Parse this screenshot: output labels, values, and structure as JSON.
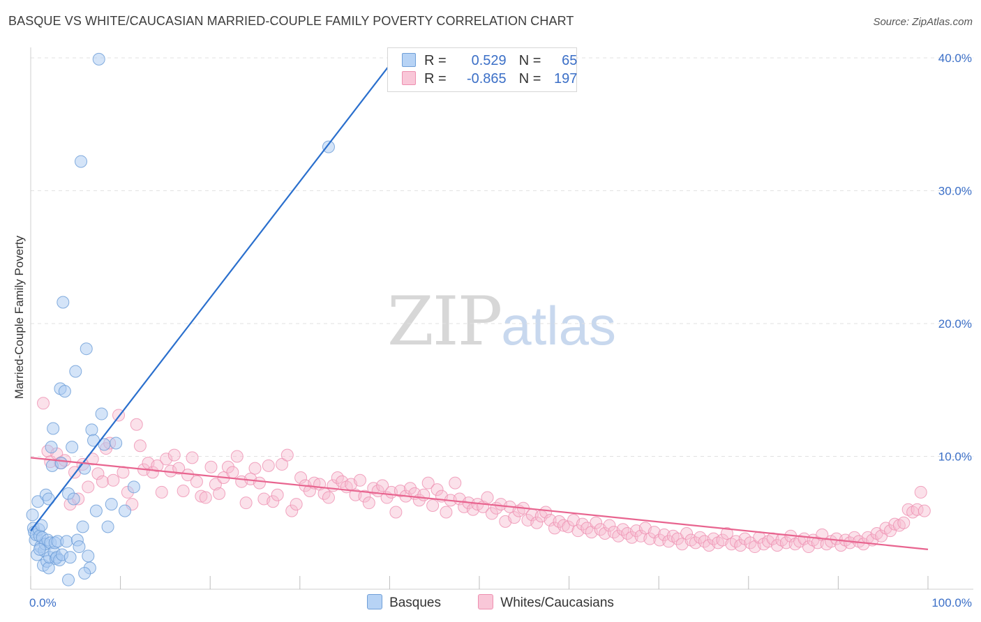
{
  "header": {
    "title": "BASQUE VS WHITE/CAUCASIAN MARRIED-COUPLE FAMILY POVERTY CORRELATION CHART",
    "source": "Source: ZipAtlas.com"
  },
  "watermark": {
    "zip": "ZIP",
    "atlas": "atlas"
  },
  "legend": {
    "rows": [
      {
        "r_label": "R =",
        "r_value": "0.529",
        "n_label": "N =",
        "n_value": "65"
      },
      {
        "r_label": "R =",
        "r_value": "-0.865",
        "n_label": "N =",
        "n_value": "197"
      }
    ]
  },
  "colors": {
    "blue_fill": "#a9c9f2",
    "blue_stroke": "#6f9fd8",
    "blue_line": "#2a6fcd",
    "pink_fill": "#f6bcd0",
    "pink_stroke": "#ee8fb0",
    "pink_line": "#e8648f",
    "tick_label": "#3b6fc7",
    "grid": "#e2e2e2"
  },
  "chart_data": {
    "type": "scatter",
    "title": "BASQUE VS WHITE/CAUCASIAN MARRIED-COUPLE FAMILY POVERTY CORRELATION CHART",
    "xlabel": "",
    "ylabel": "Married-Couple Family Poverty",
    "xlim": [
      0,
      100
    ],
    "ylim": [
      0,
      40
    ],
    "x_tick_labels": [
      "0.0%",
      "100.0%"
    ],
    "y_ticks": [
      10,
      20,
      30,
      40
    ],
    "y_tick_labels": [
      "10.0%",
      "20.0%",
      "30.0%",
      "40.0%"
    ],
    "grid": true,
    "legend_position": "bottom",
    "series": [
      {
        "name": "Basques",
        "r": 0.529,
        "n": 65,
        "trendline": {
          "x": [
            0.0,
            40.5
          ],
          "y": [
            4.4,
            39.9
          ]
        },
        "points": [
          [
            0.2,
            5.6
          ],
          [
            0.3,
            4.6
          ],
          [
            0.4,
            4.3
          ],
          [
            0.5,
            3.7
          ],
          [
            0.6,
            4.1
          ],
          [
            0.7,
            2.6
          ],
          [
            0.8,
            6.6
          ],
          [
            0.9,
            4.5
          ],
          [
            1.0,
            4.0
          ],
          [
            1.1,
            3.2
          ],
          [
            1.2,
            4.8
          ],
          [
            1.3,
            3.9
          ],
          [
            1.4,
            1.8
          ],
          [
            1.5,
            2.9
          ],
          [
            1.6,
            3.4
          ],
          [
            1.7,
            7.1
          ],
          [
            1.8,
            2.1
          ],
          [
            1.9,
            3.7
          ],
          [
            2.0,
            1.6
          ],
          [
            2.1,
            2.4
          ],
          [
            2.2,
            3.5
          ],
          [
            2.3,
            10.7
          ],
          [
            2.4,
            9.3
          ],
          [
            2.5,
            12.1
          ],
          [
            2.6,
            2.8
          ],
          [
            2.7,
            3.5
          ],
          [
            2.8,
            2.3
          ],
          [
            2.9,
            2.4
          ],
          [
            3.0,
            3.6
          ],
          [
            3.2,
            2.2
          ],
          [
            3.3,
            15.1
          ],
          [
            3.4,
            9.5
          ],
          [
            3.5,
            2.6
          ],
          [
            3.6,
            21.6
          ],
          [
            3.8,
            14.9
          ],
          [
            4.0,
            3.6
          ],
          [
            4.2,
            7.2
          ],
          [
            4.4,
            2.4
          ],
          [
            4.6,
            10.7
          ],
          [
            4.8,
            6.8
          ],
          [
            5.0,
            16.4
          ],
          [
            5.2,
            3.7
          ],
          [
            5.4,
            3.2
          ],
          [
            5.6,
            32.2
          ],
          [
            5.8,
            4.7
          ],
          [
            6.0,
            9.1
          ],
          [
            6.2,
            18.1
          ],
          [
            6.4,
            2.5
          ],
          [
            6.6,
            1.6
          ],
          [
            6.8,
            12.0
          ],
          [
            7.0,
            11.2
          ],
          [
            7.3,
            5.9
          ],
          [
            7.6,
            39.9
          ],
          [
            7.9,
            13.2
          ],
          [
            8.2,
            10.9
          ],
          [
            8.6,
            4.7
          ],
          [
            9.0,
            6.4
          ],
          [
            9.5,
            11.0
          ],
          [
            10.5,
            5.9
          ],
          [
            11.5,
            7.7
          ],
          [
            33.2,
            33.3
          ],
          [
            6.0,
            1.2
          ],
          [
            1.0,
            3.0
          ],
          [
            4.2,
            0.7
          ],
          [
            2.0,
            6.8
          ]
        ]
      },
      {
        "name": "Whites/Caucasians",
        "r": -0.865,
        "n": 197,
        "trendline": {
          "x": [
            0.0,
            100.0
          ],
          "y": [
            9.9,
            3.0
          ]
        },
        "points": [
          [
            1.4,
            14.0
          ],
          [
            1.9,
            10.4
          ],
          [
            2.2,
            9.6
          ],
          [
            2.9,
            10.2
          ],
          [
            3.3,
            9.5
          ],
          [
            3.8,
            9.7
          ],
          [
            4.4,
            6.4
          ],
          [
            4.9,
            8.8
          ],
          [
            5.3,
            6.8
          ],
          [
            5.8,
            9.4
          ],
          [
            6.4,
            7.7
          ],
          [
            6.9,
            9.8
          ],
          [
            7.5,
            8.7
          ],
          [
            8.0,
            8.1
          ],
          [
            8.4,
            10.6
          ],
          [
            8.8,
            11.0
          ],
          [
            9.2,
            8.2
          ],
          [
            9.8,
            13.1
          ],
          [
            10.3,
            8.8
          ],
          [
            10.8,
            7.3
          ],
          [
            11.3,
            6.4
          ],
          [
            11.8,
            12.4
          ],
          [
            12.2,
            10.8
          ],
          [
            12.6,
            9.0
          ],
          [
            13.1,
            9.5
          ],
          [
            13.6,
            8.8
          ],
          [
            14.1,
            9.3
          ],
          [
            14.6,
            7.3
          ],
          [
            15.1,
            9.8
          ],
          [
            15.6,
            8.9
          ],
          [
            16.0,
            10.1
          ],
          [
            16.5,
            9.1
          ],
          [
            17.0,
            7.4
          ],
          [
            17.5,
            8.6
          ],
          [
            18.0,
            9.9
          ],
          [
            18.5,
            8.1
          ],
          [
            19.0,
            7.0
          ],
          [
            19.5,
            6.9
          ],
          [
            20.1,
            9.2
          ],
          [
            20.6,
            7.9
          ],
          [
            21.0,
            7.2
          ],
          [
            21.5,
            8.4
          ],
          [
            22.0,
            9.2
          ],
          [
            22.5,
            8.8
          ],
          [
            23.0,
            10.0
          ],
          [
            23.5,
            8.1
          ],
          [
            24.0,
            6.5
          ],
          [
            24.5,
            8.3
          ],
          [
            25.0,
            9.1
          ],
          [
            25.5,
            8.0
          ],
          [
            26.0,
            6.8
          ],
          [
            26.5,
            9.3
          ],
          [
            27.0,
            6.6
          ],
          [
            27.5,
            7.1
          ],
          [
            28.0,
            9.4
          ],
          [
            28.6,
            10.1
          ],
          [
            29.1,
            5.9
          ],
          [
            29.6,
            6.4
          ],
          [
            30.1,
            8.4
          ],
          [
            30.6,
            7.8
          ],
          [
            31.1,
            7.4
          ],
          [
            31.6,
            8.0
          ],
          [
            32.2,
            7.9
          ],
          [
            32.7,
            7.2
          ],
          [
            33.2,
            6.9
          ],
          [
            33.7,
            7.8
          ],
          [
            34.2,
            8.4
          ],
          [
            34.7,
            8.1
          ],
          [
            35.2,
            7.7
          ],
          [
            35.7,
            7.9
          ],
          [
            36.2,
            7.1
          ],
          [
            36.7,
            8.2
          ],
          [
            37.2,
            7.0
          ],
          [
            37.7,
            6.5
          ],
          [
            38.2,
            7.6
          ],
          [
            38.7,
            7.4
          ],
          [
            39.2,
            7.8
          ],
          [
            39.7,
            6.9
          ],
          [
            40.2,
            7.3
          ],
          [
            40.7,
            5.8
          ],
          [
            41.2,
            7.4
          ],
          [
            41.8,
            7.0
          ],
          [
            42.3,
            7.6
          ],
          [
            42.8,
            7.2
          ],
          [
            43.3,
            6.7
          ],
          [
            43.8,
            7.1
          ],
          [
            44.3,
            8.0
          ],
          [
            44.8,
            6.3
          ],
          [
            45.3,
            7.5
          ],
          [
            45.8,
            7.0
          ],
          [
            46.3,
            5.8
          ],
          [
            46.8,
            6.7
          ],
          [
            47.3,
            8.0
          ],
          [
            47.8,
            6.8
          ],
          [
            48.3,
            6.2
          ],
          [
            48.8,
            6.5
          ],
          [
            49.3,
            6.0
          ],
          [
            49.8,
            6.4
          ],
          [
            50.4,
            6.2
          ],
          [
            50.9,
            6.9
          ],
          [
            51.4,
            5.7
          ],
          [
            51.9,
            6.1
          ],
          [
            52.4,
            6.4
          ],
          [
            52.9,
            5.1
          ],
          [
            53.4,
            6.2
          ],
          [
            53.9,
            5.4
          ],
          [
            54.4,
            5.9
          ],
          [
            54.9,
            6.1
          ],
          [
            55.4,
            5.2
          ],
          [
            55.9,
            5.6
          ],
          [
            56.4,
            5.0
          ],
          [
            56.9,
            5.5
          ],
          [
            57.4,
            5.8
          ],
          [
            57.9,
            5.2
          ],
          [
            58.4,
            4.6
          ],
          [
            58.9,
            5.1
          ],
          [
            59.4,
            4.8
          ],
          [
            59.9,
            4.7
          ],
          [
            60.5,
            5.2
          ],
          [
            61.0,
            4.4
          ],
          [
            61.5,
            4.9
          ],
          [
            62.0,
            4.6
          ],
          [
            62.5,
            4.3
          ],
          [
            63.0,
            5.0
          ],
          [
            63.5,
            4.5
          ],
          [
            64.0,
            4.2
          ],
          [
            64.5,
            4.8
          ],
          [
            65.0,
            4.3
          ],
          [
            65.5,
            4.0
          ],
          [
            66.0,
            4.5
          ],
          [
            66.5,
            4.2
          ],
          [
            67.0,
            3.9
          ],
          [
            67.5,
            4.4
          ],
          [
            68.0,
            4.0
          ],
          [
            68.5,
            4.6
          ],
          [
            69.0,
            3.8
          ],
          [
            69.5,
            4.3
          ],
          [
            70.1,
            3.7
          ],
          [
            70.6,
            4.1
          ],
          [
            71.1,
            3.6
          ],
          [
            71.6,
            4.0
          ],
          [
            72.1,
            3.8
          ],
          [
            72.6,
            3.4
          ],
          [
            73.1,
            4.2
          ],
          [
            73.6,
            3.7
          ],
          [
            74.1,
            3.5
          ],
          [
            74.6,
            3.9
          ],
          [
            75.1,
            3.6
          ],
          [
            75.6,
            3.3
          ],
          [
            76.1,
            3.8
          ],
          [
            76.6,
            3.5
          ],
          [
            77.1,
            3.7
          ],
          [
            77.6,
            4.2
          ],
          [
            78.1,
            3.4
          ],
          [
            78.6,
            3.6
          ],
          [
            79.1,
            3.3
          ],
          [
            79.6,
            3.8
          ],
          [
            80.2,
            3.5
          ],
          [
            80.7,
            3.2
          ],
          [
            81.2,
            3.9
          ],
          [
            81.7,
            3.4
          ],
          [
            82.2,
            3.6
          ],
          [
            82.7,
            3.8
          ],
          [
            83.2,
            3.3
          ],
          [
            83.7,
            3.7
          ],
          [
            84.2,
            3.5
          ],
          [
            84.7,
            4.0
          ],
          [
            85.2,
            3.4
          ],
          [
            85.7,
            3.6
          ],
          [
            86.2,
            3.8
          ],
          [
            86.7,
            3.2
          ],
          [
            87.2,
            3.7
          ],
          [
            87.7,
            3.5
          ],
          [
            88.2,
            4.1
          ],
          [
            88.7,
            3.4
          ],
          [
            89.2,
            3.6
          ],
          [
            89.8,
            3.8
          ],
          [
            90.3,
            3.3
          ],
          [
            90.8,
            3.7
          ],
          [
            91.3,
            3.5
          ],
          [
            91.8,
            3.9
          ],
          [
            92.3,
            3.6
          ],
          [
            92.8,
            3.4
          ],
          [
            93.3,
            3.9
          ],
          [
            93.8,
            3.7
          ],
          [
            94.3,
            4.2
          ],
          [
            94.8,
            4.0
          ],
          [
            95.3,
            4.6
          ],
          [
            95.8,
            4.4
          ],
          [
            96.3,
            4.9
          ],
          [
            96.8,
            4.8
          ],
          [
            97.3,
            5.0
          ],
          [
            97.8,
            6.0
          ],
          [
            98.3,
            5.8
          ],
          [
            98.8,
            6.0
          ],
          [
            99.2,
            7.3
          ],
          [
            99.6,
            5.9
          ]
        ]
      }
    ]
  }
}
